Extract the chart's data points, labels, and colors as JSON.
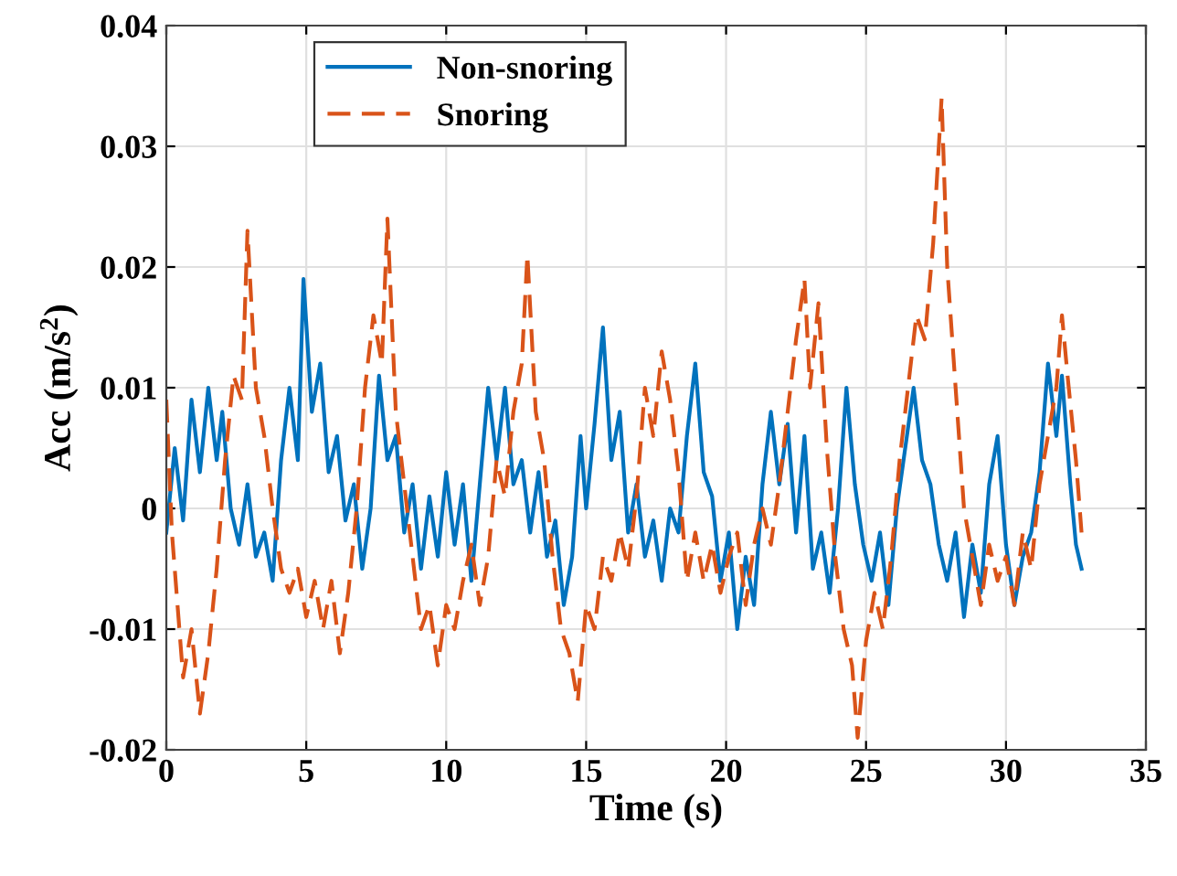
{
  "chart_data": {
    "type": "line",
    "xlabel": "Time (s)",
    "ylabel": "Acc (m/s$^{2}$)",
    "xlim": [
      0,
      35
    ],
    "ylim": [
      -0.02,
      0.04
    ],
    "xticks": [
      0,
      5,
      10,
      15,
      20,
      25,
      30,
      35
    ],
    "yticks": [
      -0.02,
      -0.01,
      0,
      0.01,
      0.02,
      0.03,
      0.04
    ],
    "grid": true,
    "legend": "top",
    "marker": "none",
    "series": [
      {
        "name": "Non-snoring",
        "color": "#0072bd",
        "line_style": "solid",
        "x": [
          0,
          0.3,
          0.6,
          0.9,
          1.2,
          1.5,
          1.8,
          2.0,
          2.3,
          2.6,
          2.9,
          3.2,
          3.5,
          3.8,
          4.1,
          4.4,
          4.7,
          4.9,
          5.2,
          5.5,
          5.8,
          6.1,
          6.4,
          6.7,
          7.0,
          7.3,
          7.6,
          7.9,
          8.2,
          8.5,
          8.8,
          9.1,
          9.4,
          9.7,
          10.0,
          10.3,
          10.6,
          10.9,
          11.2,
          11.5,
          11.8,
          12.1,
          12.4,
          12.7,
          13.0,
          13.3,
          13.6,
          13.9,
          14.2,
          14.5,
          14.8,
          15.0,
          15.3,
          15.6,
          15.9,
          16.2,
          16.5,
          16.8,
          17.1,
          17.4,
          17.7,
          18.0,
          18.3,
          18.6,
          18.9,
          19.2,
          19.5,
          19.8,
          20.1,
          20.4,
          20.7,
          21.0,
          21.3,
          21.6,
          21.9,
          22.2,
          22.5,
          22.8,
          23.1,
          23.4,
          23.7,
          24.0,
          24.3,
          24.6,
          24.9,
          25.2,
          25.5,
          25.8,
          26.1,
          26.4,
          26.7,
          27.0,
          27.3,
          27.6,
          27.9,
          28.2,
          28.5,
          28.8,
          29.1,
          29.4,
          29.7,
          30.0,
          30.3,
          30.6,
          30.9,
          31.2,
          31.5,
          31.8,
          32.0,
          32.3,
          32.5,
          32.7
        ],
        "values": [
          -0.002,
          0.005,
          -0.001,
          0.009,
          0.003,
          0.01,
          0.004,
          0.008,
          0.0,
          -0.003,
          0.002,
          -0.004,
          -0.002,
          -0.006,
          0.004,
          0.01,
          0.004,
          0.019,
          0.008,
          0.012,
          0.003,
          0.006,
          -0.001,
          0.002,
          -0.005,
          0.0,
          0.011,
          0.004,
          0.006,
          -0.002,
          0.002,
          -0.005,
          0.001,
          -0.004,
          0.003,
          -0.003,
          0.002,
          -0.006,
          0.002,
          0.01,
          0.004,
          0.01,
          0.002,
          0.004,
          -0.002,
          0.003,
          -0.004,
          -0.001,
          -0.008,
          -0.004,
          0.006,
          0.0,
          0.007,
          0.015,
          0.004,
          0.008,
          -0.002,
          0.002,
          -0.004,
          -0.001,
          -0.006,
          0.0,
          -0.002,
          0.006,
          0.012,
          0.003,
          0.001,
          -0.006,
          -0.002,
          -0.01,
          -0.004,
          -0.008,
          0.002,
          0.008,
          0.002,
          0.007,
          -0.002,
          0.006,
          -0.005,
          -0.002,
          -0.007,
          0.0,
          0.01,
          0.002,
          -0.003,
          -0.006,
          -0.002,
          -0.008,
          0.0,
          0.005,
          0.01,
          0.004,
          0.002,
          -0.003,
          -0.006,
          -0.002,
          -0.009,
          -0.003,
          -0.007,
          0.002,
          0.006,
          -0.003,
          -0.008,
          -0.004,
          -0.002,
          0.003,
          0.012,
          0.006,
          0.011,
          0.002,
          -0.003,
          -0.005
        ]
      },
      {
        "name": "Snoring",
        "color": "#d95319",
        "line_style": "dashed",
        "x": [
          0,
          0.2,
          0.4,
          0.6,
          0.9,
          1.2,
          1.5,
          1.8,
          2.1,
          2.4,
          2.7,
          2.9,
          3.2,
          3.5,
          3.8,
          4.1,
          4.4,
          4.7,
          5.0,
          5.3,
          5.6,
          5.9,
          6.2,
          6.5,
          6.8,
          7.1,
          7.4,
          7.7,
          7.9,
          8.2,
          8.5,
          8.8,
          9.1,
          9.4,
          9.7,
          10.0,
          10.3,
          10.6,
          10.9,
          11.2,
          11.5,
          11.8,
          12.1,
          12.4,
          12.7,
          12.9,
          13.2,
          13.5,
          13.8,
          14.1,
          14.4,
          14.7,
          15.0,
          15.3,
          15.6,
          15.9,
          16.2,
          16.5,
          16.8,
          17.1,
          17.4,
          17.7,
          18.0,
          18.3,
          18.6,
          18.9,
          19.2,
          19.5,
          19.8,
          20.1,
          20.4,
          20.7,
          21.0,
          21.3,
          21.6,
          21.9,
          22.2,
          22.5,
          22.8,
          23.0,
          23.3,
          23.6,
          23.9,
          24.2,
          24.5,
          24.7,
          25.0,
          25.3,
          25.6,
          25.9,
          26.2,
          26.5,
          26.8,
          27.1,
          27.4,
          27.7,
          27.9,
          28.2,
          28.5,
          28.8,
          29.1,
          29.4,
          29.7,
          30.0,
          30.3,
          30.6,
          30.9,
          31.2,
          31.5,
          31.8,
          32.0,
          32.2,
          32.5,
          32.7
        ],
        "values": [
          0.009,
          -0.002,
          -0.008,
          -0.014,
          -0.01,
          -0.017,
          -0.012,
          -0.005,
          0.004,
          0.011,
          0.009,
          0.023,
          0.01,
          0.006,
          0.0,
          -0.005,
          -0.007,
          -0.005,
          -0.009,
          -0.006,
          -0.01,
          -0.006,
          -0.012,
          -0.007,
          0.0,
          0.01,
          0.016,
          0.012,
          0.024,
          0.008,
          0.002,
          -0.004,
          -0.01,
          -0.008,
          -0.013,
          -0.008,
          -0.01,
          -0.006,
          -0.003,
          -0.008,
          -0.004,
          0.004,
          0.001,
          0.008,
          0.012,
          0.021,
          0.008,
          0.004,
          -0.004,
          -0.01,
          -0.012,
          -0.016,
          -0.008,
          -0.01,
          -0.004,
          -0.006,
          -0.002,
          -0.005,
          0.001,
          0.01,
          0.006,
          0.013,
          0.009,
          0.003,
          -0.006,
          -0.002,
          -0.006,
          -0.003,
          -0.007,
          -0.004,
          -0.002,
          -0.008,
          -0.003,
          0.0,
          -0.003,
          0.002,
          0.008,
          0.014,
          0.019,
          0.01,
          0.017,
          0.005,
          -0.004,
          -0.01,
          -0.013,
          -0.019,
          -0.011,
          -0.007,
          -0.01,
          -0.004,
          0.004,
          0.01,
          0.016,
          0.014,
          0.022,
          0.034,
          0.02,
          0.01,
          0.0,
          -0.004,
          -0.008,
          -0.003,
          -0.006,
          -0.004,
          -0.008,
          -0.002,
          -0.005,
          0.002,
          0.006,
          0.01,
          0.016,
          0.011,
          0.004,
          -0.002
        ]
      }
    ]
  }
}
